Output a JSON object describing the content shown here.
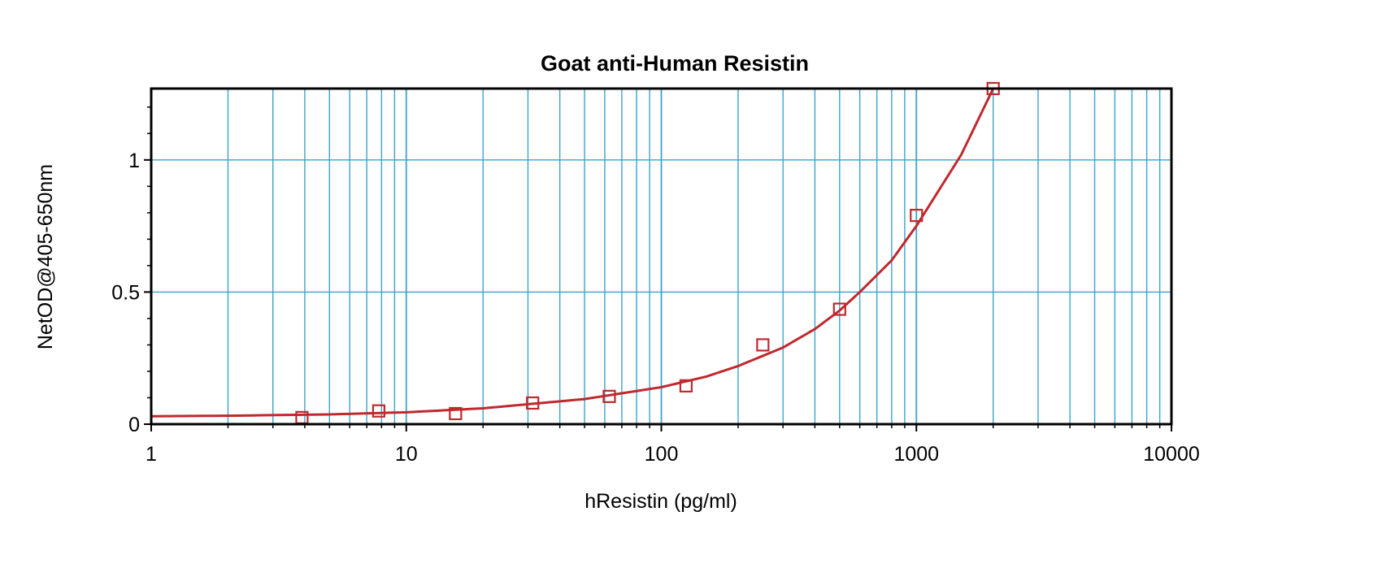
{
  "chart_data": {
    "type": "scatter",
    "title": "Goat anti-Human Resistin",
    "xlabel": "hResistin (pg/ml)",
    "ylabel": "NetOD@405-650nm",
    "x_scale": "log",
    "xlim": [
      1,
      10000
    ],
    "ylim": [
      0,
      1.27
    ],
    "x_ticks": [
      1,
      10,
      100,
      1000,
      10000
    ],
    "x_tick_labels": [
      "1",
      "10",
      "100",
      "1000",
      "10000"
    ],
    "y_ticks": [
      0,
      0.5,
      1
    ],
    "y_tick_labels": [
      "0",
      "0.5",
      "1"
    ],
    "grid": true,
    "series": [
      {
        "marker": "square",
        "x": [
          3.9,
          7.8,
          15.6,
          31.3,
          62.5,
          125,
          250,
          500,
          1000,
          2000
        ],
        "y": [
          0.025,
          0.05,
          0.04,
          0.08,
          0.105,
          0.145,
          0.3,
          0.435,
          0.79,
          1.27
        ]
      }
    ],
    "fit_curve": {
      "x": [
        1,
        2,
        5,
        10,
        20,
        50,
        100,
        150,
        200,
        300,
        400,
        500,
        600,
        800,
        1000,
        1500,
        2000
      ],
      "y": [
        0.03,
        0.032,
        0.037,
        0.045,
        0.06,
        0.095,
        0.14,
        0.18,
        0.22,
        0.29,
        0.36,
        0.43,
        0.5,
        0.62,
        0.75,
        1.02,
        1.27
      ]
    },
    "colors": {
      "data": "#c0282d",
      "grid": "#3aa3cf",
      "axis": "#000000"
    }
  }
}
